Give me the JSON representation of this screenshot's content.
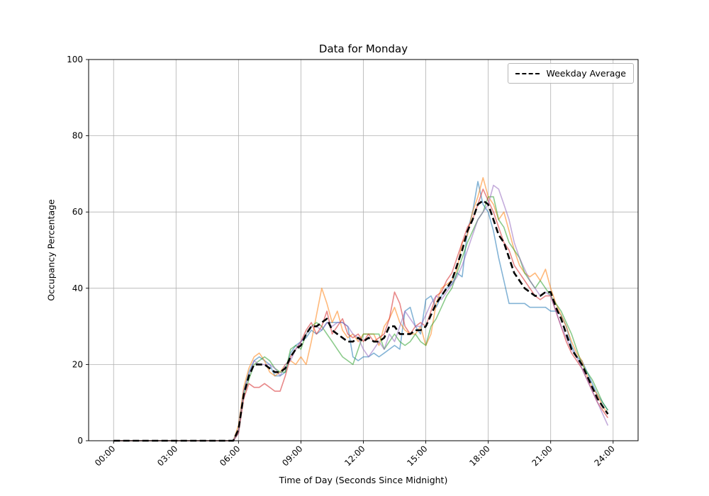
{
  "figure": {
    "title": "Data for Monday",
    "xlabel": "Time of Day (Seconds Since Midnight)",
    "ylabel": "Occupancy Percentage",
    "legend_label": "Weekday Average"
  },
  "chart_data": {
    "type": "line",
    "title": "Data for Monday",
    "xlabel": "Time of Day (Seconds Since Midnight)",
    "ylabel": "Occupancy Percentage",
    "grid": true,
    "grid_color": "#b0b0b0",
    "legend_position": "upper right",
    "legend_entries": [
      "Weekday Average"
    ],
    "x_units": "hours",
    "xlim": [
      -1.2,
      25.2
    ],
    "ylim": [
      0,
      100
    ],
    "x_ticks": [
      {
        "value": 0,
        "label": "00:00"
      },
      {
        "value": 3,
        "label": "03:00"
      },
      {
        "value": 6,
        "label": "06:00"
      },
      {
        "value": 9,
        "label": "09:00"
      },
      {
        "value": 12,
        "label": "12:00"
      },
      {
        "value": 15,
        "label": "15:00"
      },
      {
        "value": 18,
        "label": "18:00"
      },
      {
        "value": 21,
        "label": "21:00"
      },
      {
        "value": 24,
        "label": "24:00"
      }
    ],
    "y_ticks": [
      0,
      20,
      40,
      60,
      80,
      100
    ],
    "x": [
      0,
      0.25,
      0.5,
      0.75,
      1,
      1.25,
      1.5,
      1.75,
      2,
      2.25,
      2.5,
      2.75,
      3,
      3.25,
      3.5,
      3.75,
      4,
      4.25,
      4.5,
      4.75,
      5,
      5.25,
      5.5,
      5.75,
      6,
      6.25,
      6.5,
      6.75,
      7,
      7.25,
      7.5,
      7.75,
      8,
      8.25,
      8.5,
      8.75,
      9,
      9.25,
      9.5,
      9.75,
      10,
      10.25,
      10.5,
      10.75,
      11,
      11.25,
      11.5,
      11.75,
      12,
      12.25,
      12.5,
      12.75,
      13,
      13.25,
      13.5,
      13.75,
      14,
      14.25,
      14.5,
      14.75,
      15,
      15.25,
      15.5,
      15.75,
      16,
      16.25,
      16.5,
      16.75,
      17,
      17.25,
      17.5,
      17.75,
      18,
      18.25,
      18.5,
      18.75,
      19,
      19.25,
      19.5,
      19.75,
      20,
      20.25,
      20.5,
      20.75,
      21,
      21.25,
      21.5,
      21.75,
      22,
      22.25,
      22.5,
      22.75,
      23,
      23.25,
      23.5,
      23.75
    ],
    "series": [
      {
        "name": "series-1",
        "color": "#1f77b4",
        "opacity": 0.55,
        "width": 1.6,
        "dashed": false,
        "values": [
          0,
          0,
          0,
          0,
          0,
          0,
          0,
          0,
          0,
          0,
          0,
          0,
          0,
          0,
          0,
          0,
          0,
          0,
          0,
          0,
          0,
          0,
          0,
          0,
          2,
          13,
          18,
          21,
          22,
          21,
          20,
          17,
          17,
          18,
          23,
          25,
          26,
          27,
          29,
          28,
          29,
          31,
          31,
          31,
          31,
          30,
          22,
          21,
          22,
          22,
          23,
          22,
          23,
          24,
          25,
          24,
          34,
          35,
          30,
          28,
          37,
          38,
          35,
          38,
          40,
          41,
          44,
          43,
          55,
          60,
          68,
          62,
          60,
          55,
          48,
          42,
          36,
          36,
          36,
          36,
          35,
          35,
          35,
          35,
          34,
          34,
          33,
          30,
          25,
          22,
          21,
          18,
          15,
          12,
          10,
          8
        ]
      },
      {
        "name": "series-2",
        "color": "#ff7f0e",
        "opacity": 0.55,
        "width": 1.6,
        "dashed": false,
        "values": [
          0,
          0,
          0,
          0,
          0,
          0,
          0,
          0,
          0,
          0,
          0,
          0,
          0,
          0,
          0,
          0,
          0,
          0,
          0,
          0,
          0,
          0,
          0,
          0,
          4,
          14,
          19,
          22,
          23,
          21,
          18,
          17,
          18,
          20,
          21,
          20,
          22,
          20,
          26,
          33,
          40,
          36,
          31,
          34,
          29,
          27,
          28,
          26,
          28,
          28,
          28,
          25,
          30,
          32,
          35,
          31,
          29,
          28,
          28,
          30,
          25,
          28,
          36,
          40,
          41,
          42,
          45,
          52,
          54,
          60,
          64,
          69,
          64,
          62,
          58,
          60,
          55,
          50,
          46,
          44,
          43,
          44,
          42,
          45,
          40,
          36,
          33,
          30,
          26,
          23,
          21,
          17,
          14,
          12,
          9,
          7
        ]
      },
      {
        "name": "series-3",
        "color": "#2ca02c",
        "opacity": 0.55,
        "width": 1.6,
        "dashed": false,
        "values": [
          0,
          0,
          0,
          0,
          0,
          0,
          0,
          0,
          0,
          0,
          0,
          0,
          0,
          0,
          0,
          0,
          0,
          0,
          0,
          0,
          0,
          0,
          0,
          0,
          3,
          12,
          16,
          20,
          21,
          22,
          21,
          19,
          18,
          18,
          24,
          25,
          24,
          28,
          30,
          31,
          30,
          28,
          26,
          24,
          22,
          21,
          20,
          24,
          28,
          28,
          28,
          28,
          24,
          26,
          28,
          26,
          25,
          26,
          28,
          26,
          25,
          30,
          32,
          35,
          38,
          40,
          44,
          48,
          52,
          55,
          58,
          60,
          64,
          64,
          58,
          56,
          52,
          50,
          48,
          44,
          42,
          40,
          42,
          40,
          38,
          36,
          34,
          31,
          28,
          24,
          20,
          18,
          16,
          13,
          10,
          8
        ]
      },
      {
        "name": "series-4",
        "color": "#d62728",
        "opacity": 0.55,
        "width": 1.6,
        "dashed": false,
        "values": [
          0,
          0,
          0,
          0,
          0,
          0,
          0,
          0,
          0,
          0,
          0,
          0,
          0,
          0,
          0,
          0,
          0,
          0,
          0,
          0,
          0,
          0,
          0,
          0,
          2,
          11,
          15,
          14,
          14,
          15,
          14,
          13,
          13,
          17,
          22,
          24,
          26,
          29,
          31,
          28,
          30,
          34,
          28,
          30,
          32,
          28,
          27,
          28,
          26,
          28,
          26,
          27,
          28,
          32,
          39,
          36,
          30,
          28,
          30,
          31,
          30,
          34,
          38,
          39,
          42,
          44,
          48,
          52,
          56,
          58,
          62,
          66,
          63,
          60,
          56,
          52,
          50,
          46,
          44,
          42,
          40,
          38,
          37,
          38,
          38,
          34,
          30,
          26,
          23,
          21,
          19,
          16,
          13,
          10,
          8,
          6
        ]
      },
      {
        "name": "series-5",
        "color": "#9467bd",
        "opacity": 0.55,
        "width": 1.6,
        "dashed": false,
        "values": [
          0,
          0,
          0,
          0,
          0,
          0,
          0,
          0,
          0,
          0,
          0,
          0,
          0,
          0,
          0,
          0,
          0,
          0,
          0,
          0,
          0,
          0,
          0,
          0,
          3,
          13,
          17,
          21,
          20,
          20,
          20,
          19,
          17,
          20,
          21,
          24,
          26,
          28,
          30,
          30,
          29,
          31,
          30,
          31,
          31,
          30,
          28,
          27,
          24,
          22,
          24,
          26,
          24,
          28,
          26,
          30,
          34,
          32,
          30,
          30,
          33,
          36,
          38,
          37,
          39,
          41,
          43,
          46,
          50,
          54,
          58,
          60,
          62,
          67,
          66,
          62,
          58,
          52,
          48,
          45,
          42,
          40,
          38,
          39,
          38,
          34,
          30,
          27,
          24,
          22,
          19,
          16,
          13,
          10,
          7,
          4
        ]
      },
      {
        "name": "Weekday Average",
        "color": "#000000",
        "opacity": 1,
        "width": 2.6,
        "dashed": true,
        "values": [
          0,
          0,
          0,
          0,
          0,
          0,
          0,
          0,
          0,
          0,
          0,
          0,
          0,
          0,
          0,
          0,
          0,
          0,
          0,
          0,
          0,
          0,
          0,
          0,
          3,
          12,
          17,
          20,
          20,
          20,
          19,
          18,
          18,
          19,
          22,
          24,
          25,
          28,
          30,
          30,
          31,
          32,
          29,
          28,
          27,
          26,
          26,
          27,
          26,
          27,
          26,
          26,
          27,
          30,
          30,
          28,
          28,
          28,
          29,
          29,
          30,
          33,
          36,
          38,
          40,
          42,
          46,
          50,
          55,
          58,
          62,
          63,
          62,
          58,
          54,
          52,
          48,
          44,
          42,
          40,
          39,
          38,
          38,
          39,
          39,
          35,
          32,
          28,
          24,
          22,
          20,
          17,
          14,
          11,
          9,
          7
        ]
      }
    ]
  }
}
